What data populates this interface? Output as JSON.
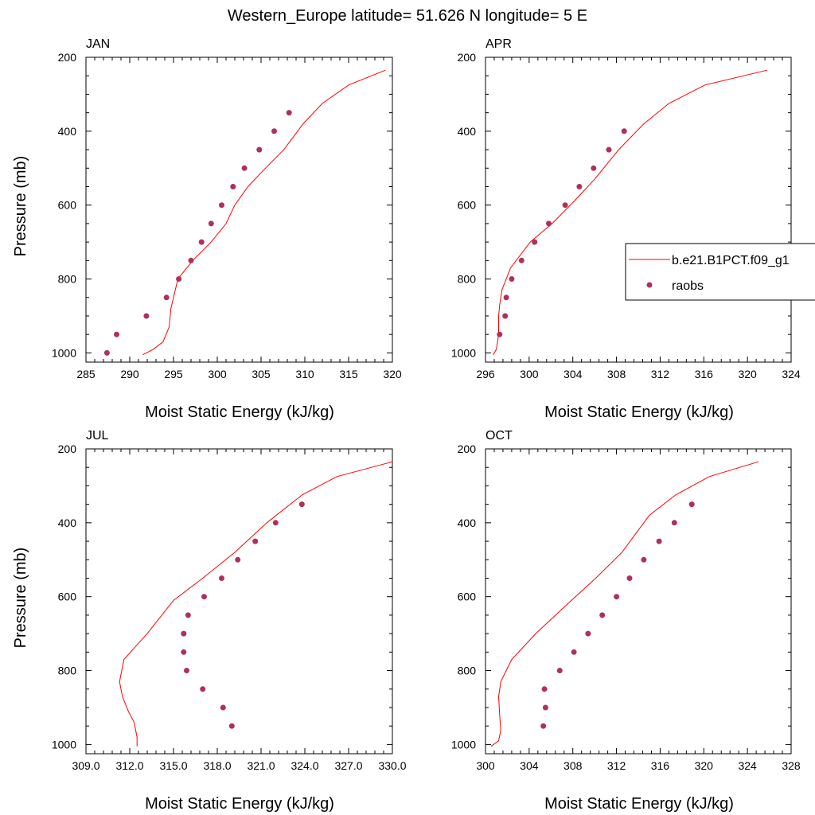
{
  "figure": {
    "title": "Western_Europe  latitude= 51.626 N longitude= 5 E"
  },
  "legend": {
    "model_label": "b.e21.B1PCT.f09_g1",
    "obs_label": "raobs",
    "placement": "right of APR panel"
  },
  "colors": {
    "model": "#ff0000",
    "obs": "#b0305a",
    "axis": "#000000"
  },
  "chart_data": [
    {
      "type": "line",
      "title": "JAN",
      "xlabel": "Moist Static Energy (kJ/kg)",
      "ylabel": "Pressure (mb)",
      "xlim": [
        285,
        320
      ],
      "ylim": [
        200,
        1025
      ],
      "y_inverted": true,
      "xticks": [
        "285",
        "290",
        "295",
        "300",
        "305",
        "310",
        "315",
        "320"
      ],
      "yticks": [
        "200",
        "400",
        "600",
        "800",
        "1000"
      ],
      "series": [
        {
          "name": "b.e21.B1PCT.f09_g1",
          "kind": "line",
          "x": [
            291.5,
            292.7,
            293.8,
            294.5,
            294.7,
            295.5,
            297.2,
            299.3,
            301.0,
            302.0,
            303.5,
            305.5,
            307.6,
            309.8,
            312.0,
            315.0,
            319.2
          ],
          "y": [
            1005,
            990,
            970,
            930,
            880,
            800,
            750,
            700,
            650,
            600,
            550,
            500,
            450,
            380,
            325,
            275,
            235
          ]
        },
        {
          "name": "raobs",
          "kind": "scatter",
          "x": [
            287.4,
            288.5,
            291.9,
            294.2,
            295.6,
            297.0,
            298.2,
            299.3,
            300.5,
            301.8,
            303.1,
            304.8,
            306.5,
            308.2
          ],
          "y": [
            1000,
            950,
            900,
            850,
            800,
            750,
            700,
            650,
            600,
            550,
            500,
            450,
            400,
            350
          ]
        }
      ]
    },
    {
      "type": "line",
      "title": "APR",
      "xlabel": "Moist Static Energy (kJ/kg)",
      "ylabel": "",
      "xlim": [
        296,
        324
      ],
      "ylim": [
        200,
        1025
      ],
      "y_inverted": true,
      "xticks": [
        "296",
        "300",
        "304",
        "308",
        "312",
        "316",
        "320",
        "324"
      ],
      "yticks": [
        "200",
        "400",
        "600",
        "800",
        "1000"
      ],
      "series": [
        {
          "name": "b.e21.B1PCT.f09_g1",
          "kind": "line",
          "x": [
            296.7,
            297.0,
            297.2,
            297.2,
            297.3,
            297.5,
            298.3,
            300.1,
            302.1,
            304.1,
            306.0,
            308.2,
            310.5,
            312.8,
            316.1,
            321.8
          ],
          "y": [
            1005,
            990,
            950,
            900,
            870,
            830,
            770,
            700,
            650,
            590,
            530,
            450,
            380,
            325,
            275,
            235
          ]
        },
        {
          "name": "raobs",
          "kind": "scatter",
          "x": [
            297.3,
            297.8,
            297.9,
            298.4,
            299.3,
            300.5,
            301.8,
            303.3,
            304.6,
            305.9,
            307.3,
            308.7
          ],
          "y": [
            950,
            900,
            850,
            800,
            750,
            700,
            650,
            600,
            550,
            500,
            450,
            400
          ]
        }
      ]
    },
    {
      "type": "line",
      "title": "JUL",
      "xlabel": "Moist Static Energy (kJ/kg)",
      "ylabel": "Pressure (mb)",
      "xlim": [
        309.0,
        330.0
      ],
      "ylim": [
        200,
        1025
      ],
      "y_inverted": true,
      "xticks": [
        "309.0",
        "312.0",
        "315.0",
        "318.0",
        "321.0",
        "324.0",
        "327.0",
        "330.0"
      ],
      "yticks": [
        "200",
        "400",
        "600",
        "800",
        "1000"
      ],
      "series": [
        {
          "name": "b.e21.B1PCT.f09_g1",
          "kind": "line",
          "x": [
            312.5,
            312.5,
            312.3,
            311.9,
            311.5,
            311.3,
            311.6,
            313.2,
            315.0,
            317.0,
            319.2,
            321.4,
            323.8,
            326.2,
            330.0
          ],
          "y": [
            1005,
            980,
            940,
            910,
            870,
            830,
            770,
            700,
            610,
            550,
            480,
            400,
            325,
            275,
            235
          ]
        },
        {
          "name": "raobs",
          "kind": "scatter",
          "x": [
            319.0,
            318.4,
            317.0,
            315.9,
            315.7,
            315.7,
            316.0,
            317.1,
            318.3,
            319.4,
            320.6,
            322.0,
            323.8
          ],
          "y": [
            950,
            900,
            850,
            800,
            750,
            700,
            650,
            600,
            550,
            500,
            450,
            400,
            350
          ]
        }
      ]
    },
    {
      "type": "line",
      "title": "OCT",
      "xlabel": "Moist Static Energy (kJ/kg)",
      "ylabel": "",
      "xlim": [
        300,
        328
      ],
      "ylim": [
        200,
        1025
      ],
      "y_inverted": true,
      "xticks": [
        "300",
        "304",
        "308",
        "312",
        "316",
        "320",
        "324",
        "328"
      ],
      "yticks": [
        "200",
        "400",
        "600",
        "800",
        "1000"
      ],
      "series": [
        {
          "name": "b.e21.B1PCT.f09_g1",
          "kind": "line",
          "x": [
            300.5,
            301.2,
            301.4,
            301.3,
            301.2,
            301.4,
            302.4,
            304.6,
            307.5,
            310.1,
            312.5,
            315.0,
            317.4,
            320.5,
            325.0
          ],
          "y": [
            1005,
            990,
            960,
            920,
            870,
            830,
            770,
            700,
            620,
            550,
            480,
            380,
            325,
            275,
            235
          ]
        },
        {
          "name": "raobs",
          "kind": "scatter",
          "x": [
            305.3,
            305.5,
            305.4,
            306.8,
            308.1,
            309.4,
            310.7,
            312.0,
            313.2,
            314.5,
            315.9,
            317.3,
            318.9
          ],
          "y": [
            950,
            900,
            850,
            800,
            750,
            700,
            650,
            600,
            550,
            500,
            450,
            400,
            350
          ]
        }
      ]
    }
  ]
}
